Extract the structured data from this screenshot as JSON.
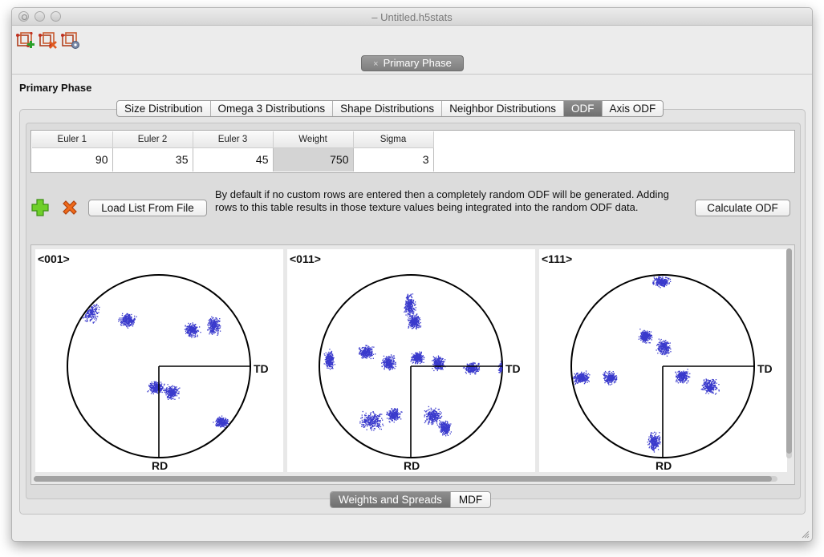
{
  "window": {
    "title": "– Untitled.h5stats"
  },
  "toolbar": {
    "icons": [
      "add-phase-icon",
      "remove-phase-icon",
      "edit-phase-icon"
    ]
  },
  "document_tab": {
    "label": "Primary Phase",
    "close_glyph": "×"
  },
  "phase": {
    "title": "Primary Phase"
  },
  "tabs": [
    {
      "label": "Size Distribution",
      "active": false
    },
    {
      "label": "Omega 3 Distributions",
      "active": false
    },
    {
      "label": "Shape Distributions",
      "active": false
    },
    {
      "label": "Neighbor Distributions",
      "active": false
    },
    {
      "label": "ODF",
      "active": true
    },
    {
      "label": "Axis ODF",
      "active": false
    }
  ],
  "table": {
    "columns": [
      "Euler 1",
      "Euler 2",
      "Euler 3",
      "Weight",
      "Sigma"
    ],
    "rows": [
      [
        "90",
        "35",
        "45",
        "750",
        "3"
      ]
    ]
  },
  "actions": {
    "add_row_icon": "plus-icon",
    "remove_row_icon": "x-icon",
    "load_button": "Load List From File",
    "calculate_button": "Calculate ODF",
    "info_text": "By default if no custom rows are entered then a completely random ODF will be generated. Adding rows to this table results in those texture values being integrated into the random ODF data."
  },
  "pole_figures": [
    {
      "label": "<001>",
      "td": "TD",
      "rd": "RD"
    },
    {
      "label": "<011>",
      "td": "TD",
      "rd": "RD"
    },
    {
      "label": "<111>",
      "td": "TD",
      "rd": "RD"
    }
  ],
  "bottom_tabs": [
    {
      "label": "Weights and Spreads",
      "active": true
    },
    {
      "label": "MDF",
      "active": false
    }
  ],
  "colors": {
    "point_color": "#3a3acc",
    "active_tab": "#7c7c7c"
  }
}
